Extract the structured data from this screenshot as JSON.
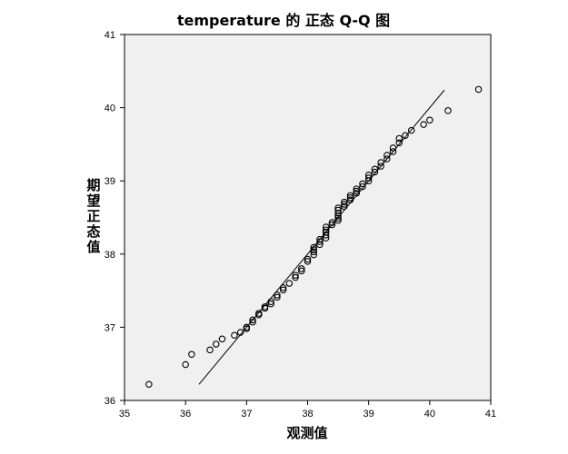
{
  "chart_data": {
    "type": "scatter",
    "title": "temperature 的 正态 Q-Q 图",
    "xlabel": "观测值",
    "ylabel": "期望正态值",
    "xlim": [
      35,
      41
    ],
    "ylim": [
      36,
      41
    ],
    "xticks": [
      "35",
      "36",
      "37",
      "38",
      "39",
      "40",
      "41"
    ],
    "yticks": [
      "36",
      "37",
      "38",
      "39",
      "40",
      "41"
    ],
    "grid": false,
    "background": "#f0f0f0",
    "marker_color": "#000000",
    "reference_line": {
      "x": [
        36.22,
        40.24
      ],
      "y": [
        36.22,
        40.24
      ]
    },
    "points": [
      [
        35.4,
        36.22
      ],
      [
        36.0,
        36.49
      ],
      [
        36.1,
        36.63
      ],
      [
        36.4,
        36.69
      ],
      [
        36.5,
        36.77
      ],
      [
        36.6,
        36.84
      ],
      [
        36.8,
        36.89
      ],
      [
        36.9,
        36.93
      ],
      [
        37.0,
        36.98
      ],
      [
        37.0,
        37.0
      ],
      [
        37.1,
        37.07
      ],
      [
        37.1,
        37.1
      ],
      [
        37.2,
        37.17
      ],
      [
        37.2,
        37.19
      ],
      [
        37.3,
        37.26
      ],
      [
        37.3,
        37.28
      ],
      [
        37.4,
        37.32
      ],
      [
        37.4,
        37.35
      ],
      [
        37.5,
        37.41
      ],
      [
        37.5,
        37.44
      ],
      [
        37.6,
        37.51
      ],
      [
        37.6,
        37.54
      ],
      [
        37.7,
        37.6
      ],
      [
        37.8,
        37.68
      ],
      [
        37.8,
        37.71
      ],
      [
        37.9,
        37.77
      ],
      [
        37.9,
        37.8
      ],
      [
        38.0,
        37.9
      ],
      [
        38.0,
        37.93
      ],
      [
        38.1,
        37.99
      ],
      [
        38.1,
        38.03
      ],
      [
        38.1,
        38.06
      ],
      [
        38.1,
        38.09
      ],
      [
        38.2,
        38.13
      ],
      [
        38.2,
        38.17
      ],
      [
        38.2,
        38.2
      ],
      [
        38.3,
        38.22
      ],
      [
        38.3,
        38.26
      ],
      [
        38.3,
        38.3
      ],
      [
        38.3,
        38.33
      ],
      [
        38.3,
        38.37
      ],
      [
        38.4,
        38.4
      ],
      [
        38.4,
        38.43
      ],
      [
        38.5,
        38.46
      ],
      [
        38.5,
        38.49
      ],
      [
        38.5,
        38.52
      ],
      [
        38.5,
        38.56
      ],
      [
        38.5,
        38.6
      ],
      [
        38.5,
        38.63
      ],
      [
        38.6,
        38.65
      ],
      [
        38.6,
        38.68
      ],
      [
        38.6,
        38.71
      ],
      [
        38.7,
        38.74
      ],
      [
        38.7,
        38.77
      ],
      [
        38.7,
        38.8
      ],
      [
        38.8,
        38.83
      ],
      [
        38.8,
        38.86
      ],
      [
        38.8,
        38.89
      ],
      [
        38.9,
        38.92
      ],
      [
        38.9,
        38.96
      ],
      [
        39.0,
        39.0
      ],
      [
        39.0,
        39.04
      ],
      [
        39.0,
        39.08
      ],
      [
        39.1,
        39.12
      ],
      [
        39.1,
        39.16
      ],
      [
        39.2,
        39.2
      ],
      [
        39.2,
        39.25
      ],
      [
        39.3,
        39.3
      ],
      [
        39.3,
        39.35
      ],
      [
        39.4,
        39.4
      ],
      [
        39.4,
        39.45
      ],
      [
        39.5,
        39.52
      ],
      [
        39.5,
        39.58
      ],
      [
        39.6,
        39.62
      ],
      [
        39.7,
        39.69
      ],
      [
        39.9,
        39.77
      ],
      [
        40.0,
        39.83
      ],
      [
        40.3,
        39.96
      ],
      [
        40.8,
        40.25
      ]
    ]
  }
}
